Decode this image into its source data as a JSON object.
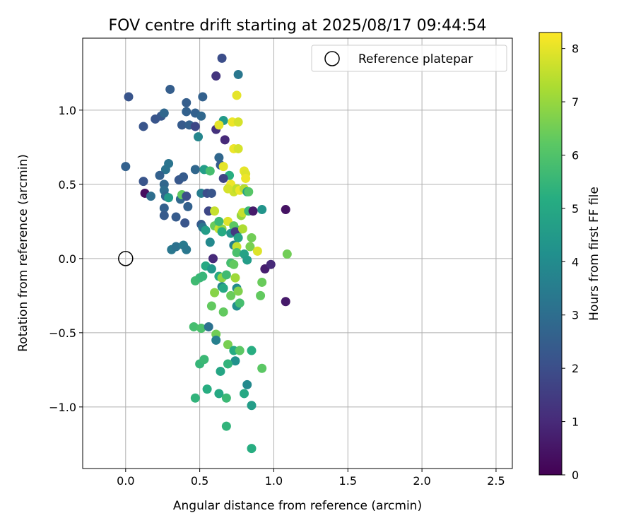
{
  "chart_data": {
    "type": "scatter",
    "title": "FOV centre drift starting at 2025/08/17 09:44:54",
    "xlabel": "Angular distance from reference (arcmin)",
    "ylabel": "Rotation from reference (arcmin)",
    "xlim": [
      -0.29,
      2.61
    ],
    "ylim": [
      -1.415,
      1.485
    ],
    "xticks": [
      0.0,
      0.5,
      1.0,
      1.5,
      2.0,
      2.5
    ],
    "xtick_labels": [
      "0.0",
      "0.5",
      "1.0",
      "1.5",
      "2.0",
      "2.5"
    ],
    "yticks": [
      -1.0,
      -0.5,
      0.0,
      0.5,
      1.0
    ],
    "ytick_labels": [
      "−1.0",
      "−0.5",
      "0.0",
      "0.5",
      "1.0"
    ],
    "grid": true,
    "legend": {
      "position": "top-right",
      "entries": [
        "Reference platepar"
      ]
    },
    "reference_point": {
      "x": 0.0,
      "y": 0.0
    },
    "colorbar": {
      "label": "Hours from first FF file",
      "min": 0,
      "max": 8.3,
      "ticks": [
        0,
        1,
        2,
        3,
        4,
        5,
        6,
        7,
        8
      ],
      "tick_labels": [
        "0",
        "1",
        "2",
        "3",
        "4",
        "5",
        "6",
        "7",
        "8"
      ],
      "colormap": "viridis"
    },
    "points": [
      [
        0.65,
        1.35,
        2.0
      ],
      [
        0.61,
        1.23,
        1.3
      ],
      [
        0.76,
        1.24,
        3.3
      ],
      [
        0.02,
        1.09,
        2.2
      ],
      [
        0.3,
        1.14,
        2.5
      ],
      [
        0.52,
        1.09,
        2.6
      ],
      [
        0.75,
        1.1,
        8.0
      ],
      [
        0.41,
        1.05,
        2.5
      ],
      [
        0.12,
        0.89,
        2.2
      ],
      [
        0.2,
        0.94,
        2.2
      ],
      [
        0.24,
        0.96,
        2.3
      ],
      [
        0.26,
        0.98,
        2.8
      ],
      [
        0.41,
        0.99,
        2.6
      ],
      [
        0.47,
        0.98,
        2.6
      ],
      [
        0.51,
        0.96,
        2.8
      ],
      [
        0.38,
        0.9,
        2.4
      ],
      [
        0.43,
        0.9,
        2.6
      ],
      [
        0.47,
        0.89,
        1.8
      ],
      [
        0.49,
        0.82,
        3.8
      ],
      [
        0.66,
        0.93,
        4.5
      ],
      [
        0.61,
        0.87,
        1.2
      ],
      [
        0.63,
        0.9,
        8.0
      ],
      [
        0.67,
        0.8,
        1.0
      ],
      [
        0.72,
        0.92,
        8.1
      ],
      [
        0.76,
        0.92,
        7.8
      ],
      [
        0.73,
        0.74,
        8.1
      ],
      [
        0.76,
        0.74,
        7.8
      ],
      [
        0.63,
        0.68,
        2.8
      ],
      [
        0.64,
        0.63,
        2.4
      ],
      [
        0.66,
        0.62,
        8.0
      ],
      [
        0.0,
        0.62,
        2.6
      ],
      [
        0.29,
        0.64,
        3.2
      ],
      [
        0.27,
        0.6,
        3.2
      ],
      [
        0.47,
        0.6,
        2.8
      ],
      [
        0.53,
        0.6,
        4.6
      ],
      [
        0.57,
        0.59,
        5.8
      ],
      [
        0.8,
        0.59,
        8.0
      ],
      [
        0.81,
        0.57,
        7.9
      ],
      [
        0.81,
        0.54,
        8.1
      ],
      [
        0.7,
        0.56,
        5.2
      ],
      [
        0.12,
        0.52,
        2.2
      ],
      [
        0.23,
        0.56,
        2.6
      ],
      [
        0.26,
        0.5,
        2.8
      ],
      [
        0.36,
        0.53,
        2.3
      ],
      [
        0.39,
        0.55,
        2.4
      ],
      [
        0.66,
        0.54,
        1.7
      ],
      [
        0.71,
        0.5,
        8.1
      ],
      [
        0.73,
        0.45,
        7.7
      ],
      [
        0.75,
        0.47,
        7.5
      ],
      [
        0.69,
        0.47,
        7.8
      ],
      [
        0.77,
        0.46,
        8.1
      ],
      [
        0.8,
        0.47,
        7.4
      ],
      [
        0.82,
        0.45,
        4.7
      ],
      [
        0.83,
        0.45,
        6.1
      ],
      [
        0.13,
        0.44,
        0.3
      ],
      [
        0.17,
        0.42,
        3.0
      ],
      [
        0.26,
        0.46,
        3.0
      ],
      [
        0.27,
        0.42,
        2.8
      ],
      [
        0.29,
        0.41,
        4.5
      ],
      [
        0.37,
        0.4,
        2.8
      ],
      [
        0.38,
        0.43,
        6.3
      ],
      [
        0.41,
        0.42,
        2.0
      ],
      [
        0.42,
        0.35,
        2.6
      ],
      [
        0.51,
        0.44,
        3.5
      ],
      [
        0.55,
        0.44,
        2.0
      ],
      [
        0.58,
        0.44,
        2.2
      ],
      [
        0.56,
        0.32,
        1.8
      ],
      [
        0.6,
        0.32,
        7.6
      ],
      [
        0.26,
        0.34,
        2.6
      ],
      [
        0.26,
        0.29,
        2.4
      ],
      [
        0.34,
        0.28,
        2.4
      ],
      [
        0.4,
        0.24,
        2.2
      ],
      [
        0.51,
        0.23,
        2.4
      ],
      [
        0.52,
        0.21,
        3.2
      ],
      [
        0.54,
        0.19,
        4.6
      ],
      [
        0.6,
        0.22,
        6.4
      ],
      [
        0.63,
        0.2,
        7.6
      ],
      [
        0.65,
        0.2,
        7.0
      ],
      [
        0.69,
        0.25,
        7.9
      ],
      [
        0.73,
        0.22,
        6.2
      ],
      [
        0.76,
        0.19,
        5.8
      ],
      [
        0.78,
        0.29,
        7.0
      ],
      [
        0.79,
        0.31,
        7.6
      ],
      [
        0.83,
        0.32,
        5.6
      ],
      [
        0.86,
        0.32,
        0.6
      ],
      [
        0.92,
        0.33,
        4.3
      ],
      [
        1.08,
        0.33,
        0.4
      ],
      [
        0.63,
        0.25,
        5.6
      ],
      [
        0.65,
        0.18,
        5.1
      ],
      [
        0.71,
        0.17,
        4.3
      ],
      [
        0.74,
        0.18,
        1.4
      ],
      [
        0.76,
        0.14,
        4.8
      ],
      [
        0.79,
        0.2,
        7.3
      ],
      [
        0.85,
        0.14,
        6.5
      ],
      [
        0.57,
        0.11,
        3.9
      ],
      [
        0.73,
        0.09,
        3.6
      ],
      [
        0.75,
        0.08,
        7.6
      ],
      [
        0.84,
        0.08,
        6.6
      ],
      [
        0.89,
        0.05,
        7.9
      ],
      [
        0.31,
        0.06,
        3.3
      ],
      [
        0.34,
        0.08,
        3.1
      ],
      [
        0.39,
        0.09,
        3.4
      ],
      [
        0.41,
        0.06,
        3.3
      ],
      [
        0.59,
        0.0,
        1.0
      ],
      [
        0.71,
        -0.03,
        5.8
      ],
      [
        0.73,
        -0.04,
        6.3
      ],
      [
        0.75,
        0.04,
        5.9
      ],
      [
        0.8,
        0.03,
        4.8
      ],
      [
        0.82,
        -0.01,
        4.6
      ],
      [
        0.94,
        -0.07,
        0.7
      ],
      [
        0.98,
        -0.04,
        1.0
      ],
      [
        1.08,
        -0.29,
        0.6
      ],
      [
        1.09,
        0.03,
        6.5
      ],
      [
        0.54,
        -0.05,
        5.0
      ],
      [
        0.58,
        -0.07,
        4.4
      ],
      [
        0.63,
        -0.12,
        5.0
      ],
      [
        0.65,
        -0.13,
        6.9
      ],
      [
        0.68,
        -0.11,
        5.7
      ],
      [
        0.74,
        -0.13,
        7.1
      ],
      [
        0.65,
        -0.19,
        3.8
      ],
      [
        0.66,
        -0.2,
        5.0
      ],
      [
        0.71,
        -0.25,
        6.4
      ],
      [
        0.75,
        -0.2,
        4.0
      ],
      [
        0.76,
        -0.22,
        6.7
      ],
      [
        0.92,
        -0.16,
        6.4
      ],
      [
        0.91,
        -0.25,
        6.3
      ],
      [
        0.47,
        -0.15,
        5.7
      ],
      [
        0.5,
        -0.13,
        5.6
      ],
      [
        0.52,
        -0.12,
        5.5
      ],
      [
        0.6,
        -0.23,
        6.8
      ],
      [
        0.58,
        -0.32,
        6.3
      ],
      [
        0.66,
        -0.36,
        6.3
      ],
      [
        0.75,
        -0.32,
        4.1
      ],
      [
        0.77,
        -0.3,
        5.8
      ],
      [
        0.46,
        -0.46,
        5.8
      ],
      [
        0.51,
        -0.47,
        5.9
      ],
      [
        0.56,
        -0.46,
        3.1
      ],
      [
        0.61,
        -0.51,
        6.5
      ],
      [
        0.61,
        -0.55,
        3.6
      ],
      [
        0.69,
        -0.58,
        6.6
      ],
      [
        0.73,
        -0.62,
        5.1
      ],
      [
        0.77,
        -0.62,
        6.2
      ],
      [
        0.85,
        -0.62,
        5.2
      ],
      [
        0.74,
        -0.69,
        4.2
      ],
      [
        0.69,
        -0.71,
        5.4
      ],
      [
        0.92,
        -0.74,
        6.2
      ],
      [
        0.5,
        -0.71,
        5.5
      ],
      [
        0.53,
        -0.68,
        5.6
      ],
      [
        0.64,
        -0.76,
        4.9
      ],
      [
        0.82,
        -0.85,
        3.9
      ],
      [
        0.47,
        -0.94,
        5.4
      ],
      [
        0.55,
        -0.88,
        5.2
      ],
      [
        0.63,
        -0.91,
        5.0
      ],
      [
        0.68,
        -0.94,
        5.6
      ],
      [
        0.8,
        -0.91,
        5.0
      ],
      [
        0.85,
        -0.99,
        4.6
      ],
      [
        0.68,
        -1.13,
        5.4
      ],
      [
        0.85,
        -1.28,
        5.2
      ]
    ]
  }
}
